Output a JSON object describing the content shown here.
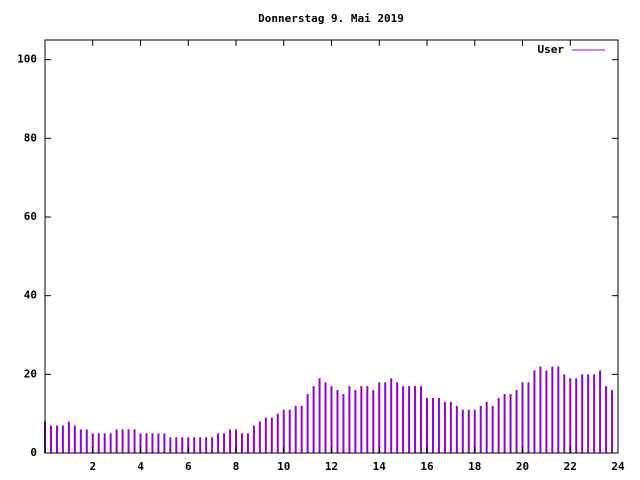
{
  "chart_data": {
    "type": "impulse",
    "title": "Donnerstag 9. Mai 2019",
    "series": [
      {
        "name": "User",
        "color": "#9400d3",
        "x": [
          0,
          0.25,
          0.5,
          0.75,
          1,
          1.25,
          1.5,
          1.75,
          2,
          2.25,
          2.5,
          2.75,
          3,
          3.25,
          3.5,
          3.75,
          4,
          4.25,
          4.5,
          4.75,
          5,
          5.25,
          5.5,
          5.75,
          6,
          6.25,
          6.5,
          6.75,
          7,
          7.25,
          7.5,
          7.75,
          8,
          8.25,
          8.5,
          8.75,
          9,
          9.25,
          9.5,
          9.75,
          10,
          10.25,
          10.5,
          10.75,
          11,
          11.25,
          11.5,
          11.75,
          12,
          12.25,
          12.5,
          12.75,
          13,
          13.25,
          13.5,
          13.75,
          14,
          14.25,
          14.5,
          14.75,
          15,
          15.25,
          15.5,
          15.75,
          16,
          16.25,
          16.5,
          16.75,
          17,
          17.25,
          17.5,
          17.75,
          18,
          18.25,
          18.5,
          18.75,
          19,
          19.25,
          19.5,
          19.75,
          20,
          20.25,
          20.5,
          20.75,
          21,
          21.25,
          21.5,
          21.75,
          22,
          22.25,
          22.5,
          22.75,
          23,
          23.25,
          23.5,
          23.75
        ],
        "values": [
          8,
          7,
          7,
          7,
          8,
          7,
          6,
          6,
          5,
          5,
          5,
          5,
          6,
          6,
          6,
          6,
          5,
          5,
          5,
          5,
          5,
          4,
          4,
          4,
          4,
          4,
          4,
          4,
          4,
          5,
          5,
          6,
          6,
          5,
          5,
          7,
          8,
          9,
          9,
          10,
          11,
          11,
          12,
          12,
          15,
          17,
          19,
          18,
          17,
          16,
          15,
          17,
          16,
          17,
          17,
          16,
          18,
          18,
          19,
          18,
          17,
          17,
          17,
          17,
          14,
          14,
          14,
          13,
          13,
          12,
          11,
          11,
          11,
          12,
          13,
          12,
          14,
          15,
          15,
          16,
          18,
          18,
          21,
          22,
          21,
          22,
          22,
          20,
          19,
          19,
          20,
          20,
          20,
          21,
          17,
          16
        ]
      }
    ],
    "xlim": [
      0,
      24
    ],
    "xticks": [
      2,
      4,
      6,
      8,
      10,
      12,
      14,
      16,
      18,
      20,
      22,
      24
    ],
    "ylim": [
      0,
      105
    ],
    "yticks": [
      0,
      20,
      40,
      60,
      80,
      100
    ],
    "legend": "upper right"
  }
}
